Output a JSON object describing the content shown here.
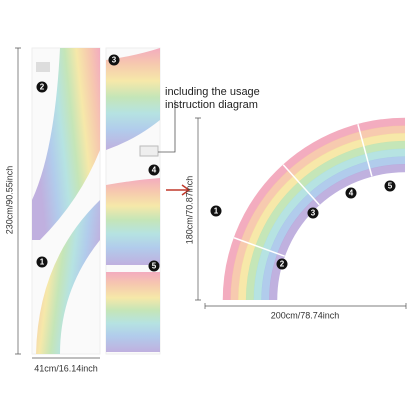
{
  "dimensions": {
    "left_height": "230cm/90.55inch",
    "left_width": "41cm/16.14inch",
    "right_height": "180cm/70.87inch",
    "right_width": "200cm/78.74inch"
  },
  "note": [
    "including the usage",
    "instruction diagram"
  ],
  "left_pieces": [
    "1",
    "2",
    "3",
    "4",
    "5"
  ],
  "right_pieces": [
    "1",
    "2",
    "3",
    "4",
    "5"
  ]
}
